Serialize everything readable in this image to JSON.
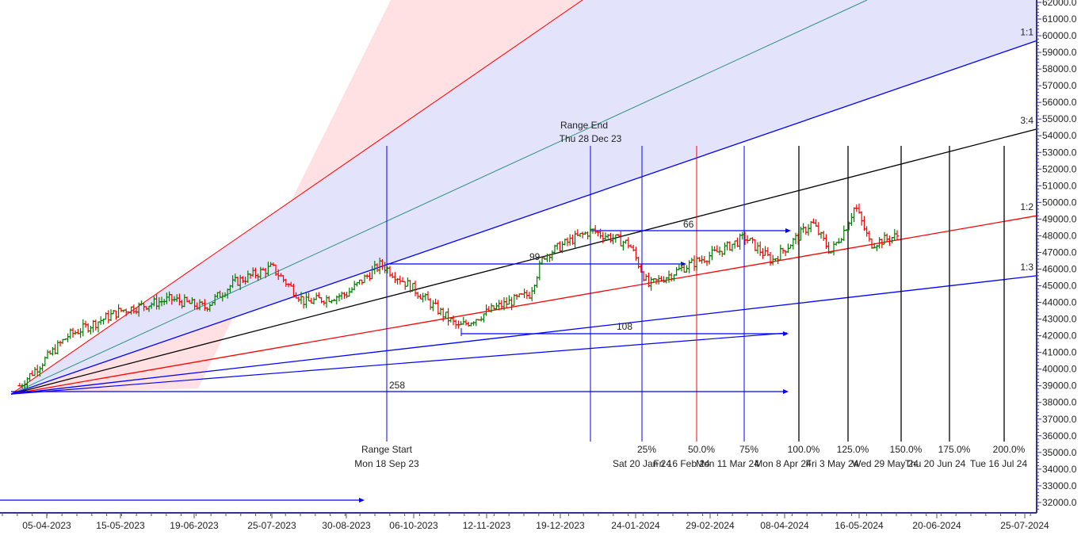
{
  "chart_data": {
    "type": "bar",
    "subtype": "ohlc-with-gann-fan-and-time-cycles",
    "title": "",
    "xlabel": "",
    "ylabel": "",
    "ylim": [
      31500,
      62200
    ],
    "grid": false,
    "yaxis": {
      "position": "right",
      "ticks": [
        "62000.0",
        "61000.0",
        "60000.0",
        "59000.0",
        "58000.0",
        "57000.0",
        "56000.0",
        "55000.0",
        "54000.0",
        "53000.0",
        "52000.0",
        "51000.0",
        "50000.0",
        "49000.0",
        "48000.0",
        "47000.0",
        "46000.0",
        "45000.0",
        "44000.0",
        "43000.0",
        "42000.0",
        "41000.0",
        "40000.0",
        "39000.0",
        "38000.0",
        "37000.0",
        "36000.0",
        "35000.0",
        "34000.0",
        "33000.0",
        "32000.0"
      ]
    },
    "xaxis": {
      "ticks": [
        "05-04-2023",
        "15-05-2023",
        "19-06-2023",
        "25-07-2023",
        "30-08-2023",
        "06-10-2023",
        "12-11-2023",
        "19-12-2023",
        "24-01-2024",
        "29-02-2024",
        "08-04-2024",
        "16-05-2024",
        "20-06-2024",
        "25-07-2024"
      ]
    },
    "gann_fan": {
      "origin_price": 38500,
      "lines": [
        {
          "name": "1:1",
          "end_price_at_right": 59700,
          "color": "#0000ff"
        },
        {
          "name": "3:4",
          "end_price_at_right": 54400,
          "color": "#000000"
        },
        {
          "name": "1:2",
          "end_price_at_right": 49200,
          "color": "#ff0000"
        },
        {
          "name": "1:3",
          "end_price_at_right": 45600,
          "color": "#0000ff"
        }
      ]
    },
    "range": {
      "start_label": "Range Start",
      "start_date": "Mon 18 Sep 23",
      "end_label": "Range End",
      "end_date": "Thu 28 Dec 23"
    },
    "cycles": [
      {
        "pct": "25%",
        "date": "Sat 20 Jan 24",
        "color": "#0000ff"
      },
      {
        "pct": "50.0%",
        "date": "Fri 16 Feb 24",
        "color": "#ff0000"
      },
      {
        "pct": "75%",
        "date": "Mon 11 Mar 24",
        "color": "#0000ff"
      },
      {
        "pct": "100.0%",
        "date": "Mon 8 Apr 24",
        "color": "#000000"
      },
      {
        "pct": "125.0%",
        "date": "Fri 3 May 24",
        "color": "#000000"
      },
      {
        "pct": "150.0%",
        "date": "Wed 29 May 24",
        "color": "#000000"
      },
      {
        "pct": "175.0%",
        "date": "Thu 20 Jun 24",
        "color": "#000000"
      },
      {
        "pct": "200.0%",
        "date": "Tue 16 Jul 24",
        "color": "#000000"
      }
    ],
    "bar_counts": [
      {
        "label": "258",
        "price": 38700
      },
      {
        "label": "108",
        "price": 42200
      },
      {
        "label": "99",
        "price": 46400
      },
      {
        "label": "66",
        "price": 48300
      }
    ],
    "series": [
      {
        "name": "price",
        "approx_close_path": [
          {
            "date": "2023-03-28",
            "value": 39000
          },
          {
            "date": "2023-04-20",
            "value": 42000
          },
          {
            "date": "2023-05-15",
            "value": 43500
          },
          {
            "date": "2023-06-05",
            "value": 44200
          },
          {
            "date": "2023-06-19",
            "value": 43700
          },
          {
            "date": "2023-07-05",
            "value": 45200
          },
          {
            "date": "2023-07-25",
            "value": 46100
          },
          {
            "date": "2023-08-10",
            "value": 44000
          },
          {
            "date": "2023-08-30",
            "value": 44500
          },
          {
            "date": "2023-09-18",
            "value": 46300
          },
          {
            "date": "2023-10-06",
            "value": 44800
          },
          {
            "date": "2023-10-26",
            "value": 42500
          },
          {
            "date": "2023-11-12",
            "value": 43700
          },
          {
            "date": "2023-11-28",
            "value": 44500
          },
          {
            "date": "2023-12-05",
            "value": 46800
          },
          {
            "date": "2023-12-19",
            "value": 47800
          },
          {
            "date": "2023-12-28",
            "value": 48300
          },
          {
            "date": "2024-01-15",
            "value": 47500
          },
          {
            "date": "2024-01-24",
            "value": 45000
          },
          {
            "date": "2024-02-10",
            "value": 46100
          },
          {
            "date": "2024-02-29",
            "value": 47200
          },
          {
            "date": "2024-03-11",
            "value": 47900
          },
          {
            "date": "2024-03-25",
            "value": 46500
          },
          {
            "date": "2024-04-08",
            "value": 48000
          },
          {
            "date": "2024-04-15",
            "value": 48800
          },
          {
            "date": "2024-04-25",
            "value": 47000
          },
          {
            "date": "2024-05-03",
            "value": 48500
          },
          {
            "date": "2024-05-08",
            "value": 49800
          },
          {
            "date": "2024-05-16",
            "value": 47500
          },
          {
            "date": "2024-05-28",
            "value": 48000
          }
        ]
      }
    ]
  },
  "colors": {
    "up_bar": "#008000",
    "down_bar": "#ff0000",
    "fan_fill_upper": "#ffe0e3",
    "fan_fill_lower": "#e3e3fc",
    "axis": "#33338f"
  }
}
